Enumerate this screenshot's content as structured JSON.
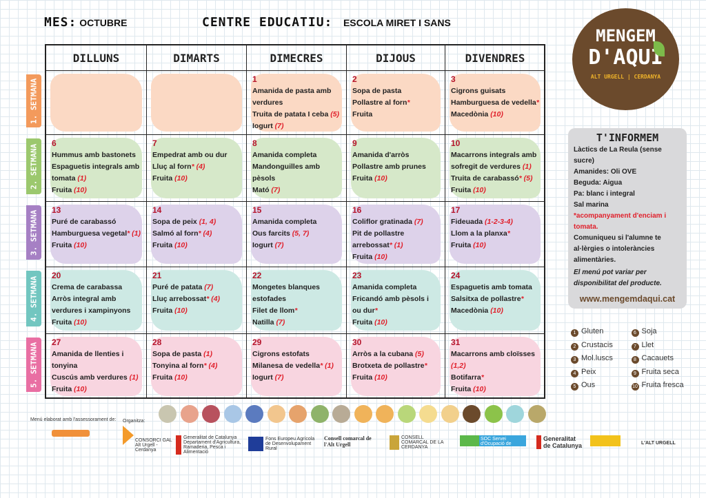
{
  "header": {
    "month_label": "MES:",
    "month": "OCTUBRE",
    "centre_label": "CENTRE EDUCATIU:",
    "centre": "ESCOLA MIRET I SANS"
  },
  "days": [
    "DILLUNS",
    "DIMARTS",
    "DIMECRES",
    "DIJOUS",
    "DIVENDRES"
  ],
  "weeks": [
    {
      "label": "1. SETMANA",
      "color": "#f39a5c",
      "bg": "#fbd9c4",
      "cells": [
        null,
        null,
        {
          "n": "1",
          "items": [
            [
              "Amanida de pasta amb verdures",
              ""
            ],
            [
              "Truita de patata I ceba ",
              "(5)"
            ],
            [
              "Iogurt ",
              "(7)"
            ]
          ]
        },
        {
          "n": "2",
          "items": [
            [
              "Sopa de pasta",
              ""
            ],
            [
              "Pollastre al forn",
              "*"
            ],
            [
              "Fruita",
              ""
            ]
          ]
        },
        {
          "n": "3",
          "items": [
            [
              "Cigrons guisats",
              ""
            ],
            [
              "Hamburguesa de vedella",
              "*"
            ],
            [
              "Macedònia ",
              "(10)"
            ]
          ]
        }
      ]
    },
    {
      "label": "2. SETMANA",
      "color": "#9cc86e",
      "bg": "#d6e8c9",
      "cells": [
        {
          "n": "6",
          "items": [
            [
              "Hummus amb bastonets",
              ""
            ],
            [
              "Espaguetis integrals amb tomata ",
              "(1)"
            ],
            [
              "Fruita ",
              "(10)"
            ]
          ]
        },
        {
          "n": "7",
          "items": [
            [
              "Empedrat amb ou dur",
              ""
            ],
            [
              "Lluç al forn",
              "*  (4)"
            ],
            [
              "Fruita ",
              "(10)"
            ]
          ]
        },
        {
          "n": "8",
          "items": [
            [
              "Amanida completa",
              ""
            ],
            [
              "Mandonguilles amb pèsols",
              ""
            ],
            [
              "Mató ",
              "(7)"
            ]
          ]
        },
        {
          "n": "9",
          "items": [
            [
              "Amanida d'arròs",
              ""
            ],
            [
              "Pollastre amb prunes",
              ""
            ],
            [
              "Fruita ",
              "(10)"
            ]
          ]
        },
        {
          "n": "10",
          "items": [
            [
              "Macarrons integrals amb sofregit de verdures ",
              "(1)"
            ],
            [
              "Truita de carabassó",
              "* (5)"
            ],
            [
              "Fruita ",
              "(10)"
            ]
          ]
        }
      ]
    },
    {
      "label": "3. SETMANA",
      "color": "#a680c4",
      "bg": "#ddd2ea",
      "cells": [
        {
          "n": "13",
          "items": [
            [
              "Puré de carabassó",
              ""
            ],
            [
              "Hamburguesa vegetal",
              "* (1)"
            ],
            [
              "Fruita ",
              "(10)"
            ]
          ]
        },
        {
          "n": "14",
          "items": [
            [
              "Sopa de peix ",
              "(1, 4)"
            ],
            [
              "Salmó al forn",
              "* (4)"
            ],
            [
              "Fruita ",
              "(10)"
            ]
          ]
        },
        {
          "n": "15",
          "items": [
            [
              "Amanida completa",
              ""
            ],
            [
              "Ous farcits ",
              "(5, 7)"
            ],
            [
              "Iogurt ",
              "(7)"
            ]
          ]
        },
        {
          "n": "16",
          "items": [
            [
              "Coliflor gratinada ",
              "(7)"
            ],
            [
              "Pit de pollastre arrebossat",
              "* (1)"
            ],
            [
              "Fruita ",
              "(10)"
            ]
          ]
        },
        {
          "n": "17",
          "items": [
            [
              "Fideuada ",
              "(1-2-3-4)"
            ],
            [
              "Llom a la planxa",
              "*"
            ],
            [
              "Fruita ",
              "(10)"
            ]
          ]
        }
      ]
    },
    {
      "label": "4. SETMANA",
      "color": "#72c6c0",
      "bg": "#cde9e4",
      "cells": [
        {
          "n": "20",
          "items": [
            [
              "Crema de carabassa",
              ""
            ],
            [
              "Arròs integral amb verdures i xampinyons",
              ""
            ],
            [
              "Fruita ",
              "(10)"
            ]
          ]
        },
        {
          "n": "21",
          "items": [
            [
              "Puré de patata ",
              "(7)"
            ],
            [
              "Lluç arrebossat",
              "* (4)"
            ],
            [
              "Fruita ",
              "(10)"
            ]
          ]
        },
        {
          "n": "22",
          "items": [
            [
              "Mongetes blanques estofades",
              ""
            ],
            [
              "Filet de llom",
              "*"
            ],
            [
              "Natilla ",
              "(7)"
            ]
          ]
        },
        {
          "n": "23",
          "items": [
            [
              "Amanida completa",
              ""
            ],
            [
              "Fricandó amb pèsols i ou dur",
              "*"
            ],
            [
              "Fruita ",
              "(10)"
            ]
          ]
        },
        {
          "n": "24",
          "items": [
            [
              "Espaguetis amb tomata",
              ""
            ],
            [
              "Salsitxa de pollastre",
              "*"
            ],
            [
              "Macedònia ",
              "(10)"
            ]
          ]
        }
      ]
    },
    {
      "label": "5. SETMANA",
      "color": "#e96fa3",
      "bg": "#f8d5e0",
      "cells": [
        {
          "n": "27",
          "items": [
            [
              "Amanida de llenties i tonyina",
              ""
            ],
            [
              "Cuscús amb verdures ",
              "(1)"
            ],
            [
              "Fruita ",
              "(10)"
            ]
          ]
        },
        {
          "n": "28",
          "items": [
            [
              "Sopa de pasta ",
              "(1)"
            ],
            [
              "Tonyina al forn",
              "* (4)"
            ],
            [
              "Fruita ",
              "(10)"
            ]
          ]
        },
        {
          "n": "29",
          "items": [
            [
              "Cigrons estofats",
              ""
            ],
            [
              "Milanesa de vedella",
              "* (1)"
            ],
            [
              "Iogurt ",
              "(7)"
            ]
          ]
        },
        {
          "n": "30",
          "items": [
            [
              "Arròs a la cubana ",
              "(5)"
            ],
            [
              "Brotxeta de pollastre",
              "*"
            ],
            [
              "Fruita ",
              "(10)"
            ]
          ]
        },
        {
          "n": "31",
          "items": [
            [
              "Macarrons amb cloïsses ",
              "(1,2)"
            ],
            [
              "Botifarra",
              "*"
            ],
            [
              "Fruita ",
              "(10)"
            ]
          ]
        }
      ]
    }
  ],
  "logo": {
    "line1": "MENGEM",
    "line2": "D'AQUI",
    "sub": "ALT URGELL | CERDANYA"
  },
  "info": {
    "title": "T'INFORMEM",
    "lines": [
      "Làctics de La Reula (sense sucre)",
      "Amanides: Oli OVE",
      "Beguda: Aigua",
      "Pa: blanc i integral",
      "Sal marina"
    ],
    "red": "*acompanyament  d'enciam i tomata.",
    "note": "Comuniqueu si l'alumne te al·lèrgies o intoleràncies alimentàries.",
    "italic": "El menú pot variar per disponibilitat del producte.",
    "url": "www.mengemdaqui.cat"
  },
  "allergens": [
    [
      "1",
      "Gluten"
    ],
    [
      "6",
      "Soja"
    ],
    [
      "2",
      "Crustacis"
    ],
    [
      "7",
      "Llet"
    ],
    [
      "3",
      "Mol.luscs"
    ],
    [
      "8",
      "Cacauets"
    ],
    [
      "4",
      "Peix"
    ],
    [
      "9",
      "Fruita seca"
    ],
    [
      "5",
      "Ous"
    ],
    [
      "10",
      "Fruita fresca"
    ]
  ],
  "icon_colors": [
    "#c9c6b0",
    "#e8a38c",
    "#b8525e",
    "#a9c7e6",
    "#5b7bbf",
    "#f2c68e",
    "#e6a36c",
    "#8fb36a",
    "#b8ab96",
    "#f0b35a",
    "#f0b35a",
    "#b9d77a",
    "#f5dc90",
    "#f2d08c",
    "#6b4a2c",
    "#8cc34a",
    "#9fd6dc",
    "#b9a86a"
  ],
  "footer": {
    "advisor": "Menú elaborat amb l'assessorament de:",
    "organizer": "Organitza:",
    "logos": [
      "CONSORCI GAL Alt Urgell - Cerdanya",
      "Generalitat de Catalunya Departament d'Agricultura, Ramaderia, Pesca i Alimentació",
      "Fons Europeu Agrícola de Desenvolupament Rural",
      "Consell comarcal de l'Alt Urgell",
      "CONSELL COMARCAL DE LA CERDANYA",
      "SOC Servei d'Ocupació de Catalunya",
      "Generalitat de Catalunya",
      "L'ALT URGELL"
    ]
  }
}
